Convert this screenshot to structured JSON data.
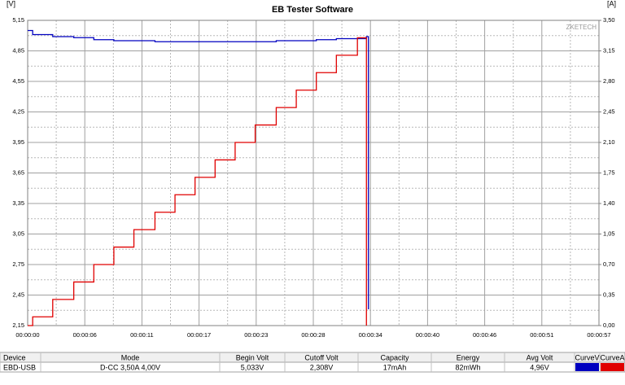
{
  "chart_data": {
    "type": "line",
    "title": "EB Tester Software",
    "y_unit": "[V]",
    "y2_unit": "[A]",
    "watermark": "ZKETECH",
    "step": true,
    "grid": true,
    "xlim": [
      0,
      57
    ],
    "xticks": [
      {
        "value": 0,
        "label": "00:00:00"
      },
      {
        "value": 5.7,
        "label": "00:00:06"
      },
      {
        "value": 11.4,
        "label": "00:00:11"
      },
      {
        "value": 17.1,
        "label": "00:00:17"
      },
      {
        "value": 22.8,
        "label": "00:00:23"
      },
      {
        "value": 28.5,
        "label": "00:00:28"
      },
      {
        "value": 34.2,
        "label": "00:00:34"
      },
      {
        "value": 39.9,
        "label": "00:00:40"
      },
      {
        "value": 45.6,
        "label": "00:00:46"
      },
      {
        "value": 51.3,
        "label": "00:00:51"
      },
      {
        "value": 57,
        "label": "00:00:57"
      }
    ],
    "ylim": [
      2.15,
      5.15
    ],
    "yticks": [
      {
        "value": 2.15,
        "label": "2,15"
      },
      {
        "value": 2.45,
        "label": "2,45"
      },
      {
        "value": 2.75,
        "label": "2,75"
      },
      {
        "value": 3.05,
        "label": "3,05"
      },
      {
        "value": 3.35,
        "label": "3,35"
      },
      {
        "value": 3.65,
        "label": "3,65"
      },
      {
        "value": 3.95,
        "label": "3,95"
      },
      {
        "value": 4.25,
        "label": "4,25"
      },
      {
        "value": 4.55,
        "label": "4,55"
      },
      {
        "value": 4.85,
        "label": "4,85"
      },
      {
        "value": 5.15,
        "label": "5,15"
      }
    ],
    "y2lim": [
      0,
      3.5
    ],
    "y2ticks": [
      {
        "value": 0,
        "label": "0,00"
      },
      {
        "value": 0.35,
        "label": "0,35"
      },
      {
        "value": 0.7,
        "label": "0,70"
      },
      {
        "value": 1.05,
        "label": "1,05"
      },
      {
        "value": 1.4,
        "label": "1,40"
      },
      {
        "value": 1.75,
        "label": "1,75"
      },
      {
        "value": 2.1,
        "label": "2,10"
      },
      {
        "value": 2.45,
        "label": "2,45"
      },
      {
        "value": 2.8,
        "label": "2,80"
      },
      {
        "value": 3.15,
        "label": "3,15"
      },
      {
        "value": 3.5,
        "label": "3,50"
      }
    ],
    "series": [
      {
        "name": "CurveV",
        "color": "#0000c0",
        "axis": "y",
        "x": [
          0,
          0.5,
          2.5,
          4.6,
          6.6,
          8.6,
          12.7,
          24.8,
          28.8,
          30.8,
          33.8,
          34.0
        ],
        "values": [
          5.05,
          5.01,
          4.99,
          4.98,
          4.96,
          4.95,
          4.94,
          4.95,
          4.96,
          4.97,
          4.99,
          2.31
        ]
      },
      {
        "name": "CurveA",
        "color": "#e00000",
        "axis": "y2",
        "x": [
          0,
          0.5,
          2.5,
          4.6,
          6.6,
          8.6,
          10.6,
          12.7,
          14.7,
          16.7,
          18.7,
          20.7,
          22.7,
          24.8,
          26.8,
          28.8,
          30.8,
          32.9,
          33.8
        ],
        "values": [
          0,
          0.1,
          0.3,
          0.5,
          0.7,
          0.9,
          1.1,
          1.3,
          1.5,
          1.7,
          1.9,
          2.1,
          2.3,
          2.5,
          2.7,
          2.9,
          3.1,
          3.3,
          0
        ]
      }
    ]
  },
  "table": {
    "headers": [
      "Device",
      "Mode",
      "Begin Volt",
      "Cutoff Volt",
      "Capacity",
      "Energy",
      "Avg Volt",
      "CurveV",
      "CurveA"
    ],
    "rows": [
      [
        "EBD-USB",
        "D-CC  3,50A  4,00V",
        "5,033V",
        "2,308V",
        "17mAh",
        "82mWh",
        "4,96V"
      ]
    ]
  }
}
